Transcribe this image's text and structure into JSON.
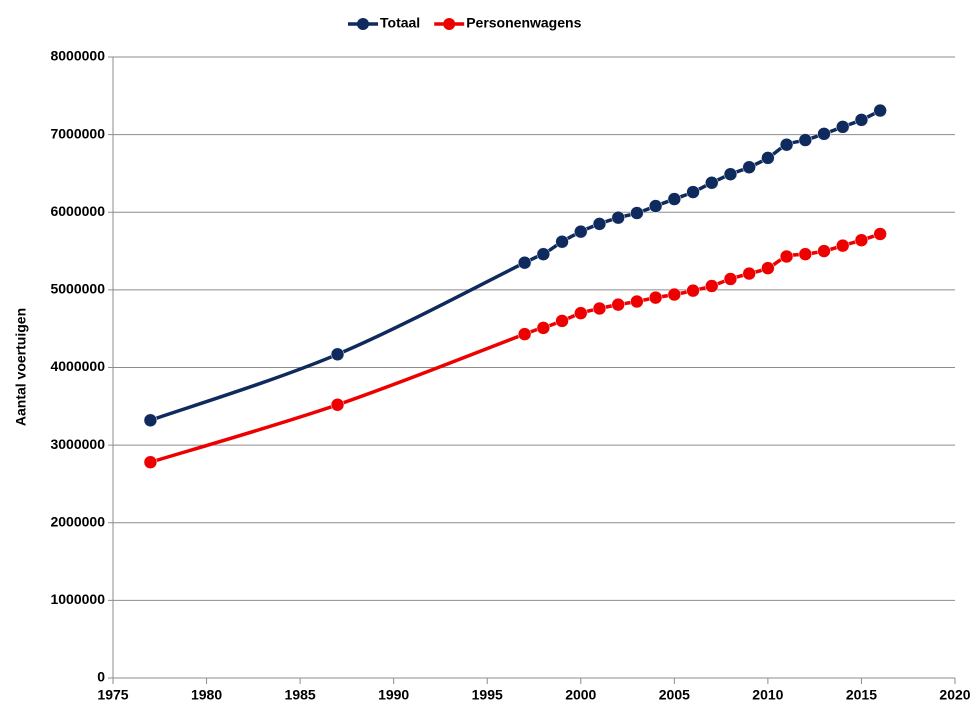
{
  "chart_data": {
    "type": "line",
    "y_label": "Aantal voertuigen",
    "x": [
      1977,
      1987,
      1997,
      1998,
      1999,
      2000,
      2001,
      2002,
      2003,
      2004,
      2005,
      2006,
      2007,
      2008,
      2009,
      2010,
      2011,
      2012,
      2013,
      2014,
      2015,
      2016
    ],
    "series": [
      {
        "name": "Totaal",
        "color": "#0f2a5c",
        "values": [
          3320000,
          4170000,
          5350000,
          5460000,
          5620000,
          5750000,
          5850000,
          5930000,
          5990000,
          6080000,
          6170000,
          6260000,
          6380000,
          6490000,
          6580000,
          6700000,
          6870000,
          6930000,
          7010000,
          7100000,
          7190000,
          7310000
        ]
      },
      {
        "name": "Personenwagens",
        "color": "#ee0000",
        "values": [
          2780000,
          3520000,
          4430000,
          4510000,
          4600000,
          4700000,
          4760000,
          4810000,
          4850000,
          4900000,
          4940000,
          4990000,
          5050000,
          5140000,
          5210000,
          5280000,
          5430000,
          5460000,
          5500000,
          5570000,
          5640000,
          5720000
        ]
      }
    ],
    "xlim": [
      1975,
      2020
    ],
    "xticks": [
      1975,
      1980,
      1985,
      1990,
      1995,
      2000,
      2005,
      2010,
      2015,
      2020
    ],
    "ylim": [
      0,
      8000000
    ],
    "yticks": [
      0,
      1000000,
      2000000,
      3000000,
      4000000,
      5000000,
      6000000,
      7000000,
      8000000
    ],
    "grid": true,
    "legend": "top",
    "smooth": true
  }
}
